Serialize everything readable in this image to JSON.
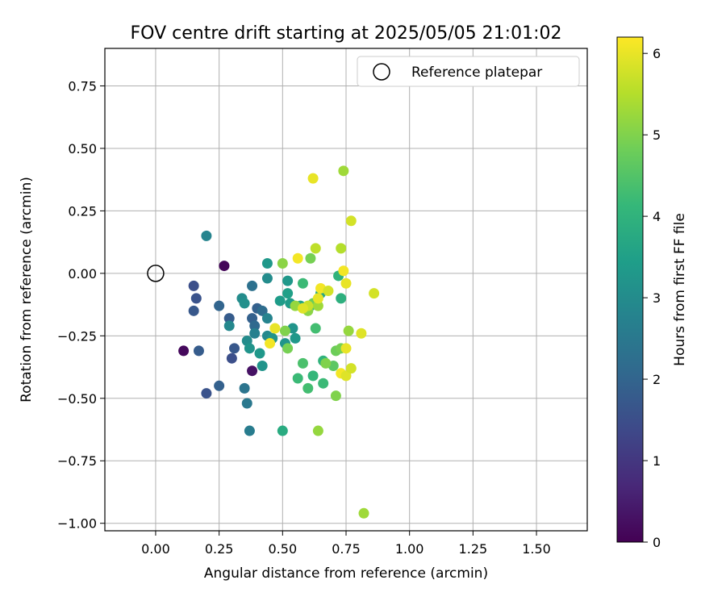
{
  "chart_data": {
    "type": "scatter",
    "title": "FOV centre drift starting at 2025/05/05 21:01:02",
    "xlabel": "Angular distance from reference (arcmin)",
    "ylabel": "Rotation from reference (arcmin)",
    "xlim": [
      -0.2,
      1.7
    ],
    "ylim": [
      -1.03,
      0.9
    ],
    "xticks": [
      0.0,
      0.25,
      0.5,
      0.75,
      1.0,
      1.25,
      1.5
    ],
    "xtick_labels": [
      "0.00",
      "0.25",
      "0.50",
      "0.75",
      "1.00",
      "1.25",
      "1.50"
    ],
    "yticks": [
      0.75,
      0.5,
      0.25,
      0.0,
      -0.25,
      -0.5,
      -0.75,
      -1.0
    ],
    "ytick_labels": [
      "0.75",
      "0.50",
      "0.25",
      "0.00",
      "−0.25",
      "−0.50",
      "−0.75",
      "−1.00"
    ],
    "grid": true,
    "legend": {
      "position": "top-right",
      "entries": [
        "Reference platepar"
      ]
    },
    "reference_point": {
      "x": 0.0,
      "y": 0.0
    },
    "colorbar": {
      "label": "Hours from first FF file",
      "range": [
        0,
        6.2
      ],
      "ticks": [
        0,
        1,
        2,
        3,
        4,
        5,
        6
      ],
      "tick_labels": [
        "0",
        "1",
        "2",
        "3",
        "4",
        "5",
        "6"
      ],
      "colormap": "viridis"
    },
    "colormap_stops": [
      "#440154",
      "#482878",
      "#3e4989",
      "#31688e",
      "#26828e",
      "#1f9e89",
      "#35b779",
      "#6ece58",
      "#b5de2b",
      "#fde725"
    ],
    "points": [
      {
        "x": 0.27,
        "y": 0.03,
        "h": 0.1
      },
      {
        "x": 0.11,
        "y": -0.31,
        "h": 0.15
      },
      {
        "x": 0.38,
        "y": -0.39,
        "h": 0.3
      },
      {
        "x": 0.15,
        "y": -0.05,
        "h": 1.5
      },
      {
        "x": 0.16,
        "y": -0.1,
        "h": 1.6
      },
      {
        "x": 0.15,
        "y": -0.15,
        "h": 1.7
      },
      {
        "x": 0.17,
        "y": -0.31,
        "h": 1.8
      },
      {
        "x": 0.2,
        "y": -0.48,
        "h": 1.6
      },
      {
        "x": 0.25,
        "y": -0.45,
        "h": 1.9
      },
      {
        "x": 0.3,
        "y": -0.34,
        "h": 1.5
      },
      {
        "x": 0.31,
        "y": -0.3,
        "h": 1.7
      },
      {
        "x": 0.25,
        "y": -0.13,
        "h": 2.0
      },
      {
        "x": 0.29,
        "y": -0.18,
        "h": 1.8
      },
      {
        "x": 0.38,
        "y": -0.18,
        "h": 1.9
      },
      {
        "x": 0.39,
        "y": -0.21,
        "h": 2.1
      },
      {
        "x": 0.4,
        "y": -0.14,
        "h": 1.9
      },
      {
        "x": 0.42,
        "y": -0.15,
        "h": 2.2
      },
      {
        "x": 0.38,
        "y": -0.05,
        "h": 2.3
      },
      {
        "x": 0.35,
        "y": -0.46,
        "h": 2.4
      },
      {
        "x": 0.36,
        "y": -0.52,
        "h": 2.5
      },
      {
        "x": 0.37,
        "y": -0.63,
        "h": 2.6
      },
      {
        "x": 0.2,
        "y": 0.15,
        "h": 2.8
      },
      {
        "x": 0.29,
        "y": -0.21,
        "h": 2.9
      },
      {
        "x": 0.34,
        "y": -0.1,
        "h": 3.0
      },
      {
        "x": 0.35,
        "y": -0.12,
        "h": 3.1
      },
      {
        "x": 0.36,
        "y": -0.27,
        "h": 3.0
      },
      {
        "x": 0.37,
        "y": -0.3,
        "h": 3.2
      },
      {
        "x": 0.39,
        "y": -0.24,
        "h": 2.7
      },
      {
        "x": 0.41,
        "y": -0.32,
        "h": 3.3
      },
      {
        "x": 0.42,
        "y": -0.37,
        "h": 3.2
      },
      {
        "x": 0.44,
        "y": -0.18,
        "h": 2.8
      },
      {
        "x": 0.44,
        "y": -0.25,
        "h": 2.9
      },
      {
        "x": 0.44,
        "y": -0.02,
        "h": 3.0
      },
      {
        "x": 0.44,
        "y": 0.04,
        "h": 3.3
      },
      {
        "x": 0.46,
        "y": -0.26,
        "h": 3.2
      },
      {
        "x": 0.49,
        "y": -0.11,
        "h": 3.4
      },
      {
        "x": 0.51,
        "y": -0.28,
        "h": 3.2
      },
      {
        "x": 0.52,
        "y": -0.03,
        "h": 3.3
      },
      {
        "x": 0.52,
        "y": -0.08,
        "h": 3.5
      },
      {
        "x": 0.53,
        "y": -0.12,
        "h": 3.4
      },
      {
        "x": 0.54,
        "y": -0.22,
        "h": 3.2
      },
      {
        "x": 0.55,
        "y": -0.26,
        "h": 3.3
      },
      {
        "x": 0.5,
        "y": -0.63,
        "h": 3.8
      },
      {
        "x": 0.57,
        "y": -0.13,
        "h": 3.6
      },
      {
        "x": 0.58,
        "y": -0.04,
        "h": 4.2
      },
      {
        "x": 0.59,
        "y": -0.14,
        "h": 3.9
      },
      {
        "x": 0.61,
        "y": -0.13,
        "h": 4.1
      },
      {
        "x": 0.63,
        "y": -0.22,
        "h": 4.3
      },
      {
        "x": 0.65,
        "y": -0.08,
        "h": 3.7
      },
      {
        "x": 0.66,
        "y": -0.35,
        "h": 4.0
      },
      {
        "x": 0.56,
        "y": -0.42,
        "h": 4.2
      },
      {
        "x": 0.58,
        "y": -0.36,
        "h": 4.4
      },
      {
        "x": 0.6,
        "y": -0.46,
        "h": 4.3
      },
      {
        "x": 0.62,
        "y": -0.41,
        "h": 4.1
      },
      {
        "x": 0.66,
        "y": -0.44,
        "h": 4.2
      },
      {
        "x": 0.72,
        "y": -0.01,
        "h": 4.0
      },
      {
        "x": 0.73,
        "y": -0.1,
        "h": 3.9
      },
      {
        "x": 0.7,
        "y": -0.37,
        "h": 4.6
      },
      {
        "x": 0.71,
        "y": -0.31,
        "h": 4.8
      },
      {
        "x": 0.73,
        "y": -0.3,
        "h": 4.9
      },
      {
        "x": 0.71,
        "y": -0.49,
        "h": 5.0
      },
      {
        "x": 0.64,
        "y": -0.63,
        "h": 5.2
      },
      {
        "x": 0.67,
        "y": -0.36,
        "h": 5.0
      },
      {
        "x": 0.61,
        "y": 0.06,
        "h": 4.9
      },
      {
        "x": 0.5,
        "y": 0.04,
        "h": 5.1
      },
      {
        "x": 0.51,
        "y": -0.23,
        "h": 5.0
      },
      {
        "x": 0.52,
        "y": -0.3,
        "h": 4.9
      },
      {
        "x": 0.55,
        "y": -0.13,
        "h": 5.2
      },
      {
        "x": 0.6,
        "y": -0.15,
        "h": 5.1
      },
      {
        "x": 0.62,
        "y": -0.12,
        "h": 4.8
      },
      {
        "x": 0.64,
        "y": -0.13,
        "h": 5.3
      },
      {
        "x": 0.74,
        "y": 0.41,
        "h": 5.3
      },
      {
        "x": 0.73,
        "y": 0.1,
        "h": 5.5
      },
      {
        "x": 0.76,
        "y": -0.23,
        "h": 5.2
      },
      {
        "x": 0.63,
        "y": 0.1,
        "h": 5.6
      },
      {
        "x": 0.82,
        "y": -0.96,
        "h": 5.3
      },
      {
        "x": 0.6,
        "y": -0.13,
        "h": 5.7
      },
      {
        "x": 0.62,
        "y": 0.38,
        "h": 6.0
      },
      {
        "x": 0.77,
        "y": 0.21,
        "h": 5.8
      },
      {
        "x": 0.56,
        "y": 0.06,
        "h": 6.1
      },
      {
        "x": 0.47,
        "y": -0.22,
        "h": 6.0
      },
      {
        "x": 0.45,
        "y": -0.28,
        "h": 6.1
      },
      {
        "x": 0.58,
        "y": -0.14,
        "h": 5.9
      },
      {
        "x": 0.64,
        "y": -0.1,
        "h": 6.0
      },
      {
        "x": 0.65,
        "y": -0.06,
        "h": 6.1
      },
      {
        "x": 0.68,
        "y": -0.07,
        "h": 5.8
      },
      {
        "x": 0.74,
        "y": 0.01,
        "h": 6.1
      },
      {
        "x": 0.75,
        "y": -0.04,
        "h": 6.0
      },
      {
        "x": 0.75,
        "y": -0.3,
        "h": 6.0
      },
      {
        "x": 0.73,
        "y": -0.4,
        "h": 6.1
      },
      {
        "x": 0.75,
        "y": -0.41,
        "h": 5.9
      },
      {
        "x": 0.77,
        "y": -0.38,
        "h": 5.8
      },
      {
        "x": 0.81,
        "y": -0.24,
        "h": 5.9
      },
      {
        "x": 0.86,
        "y": -0.08,
        "h": 5.8
      }
    ]
  }
}
